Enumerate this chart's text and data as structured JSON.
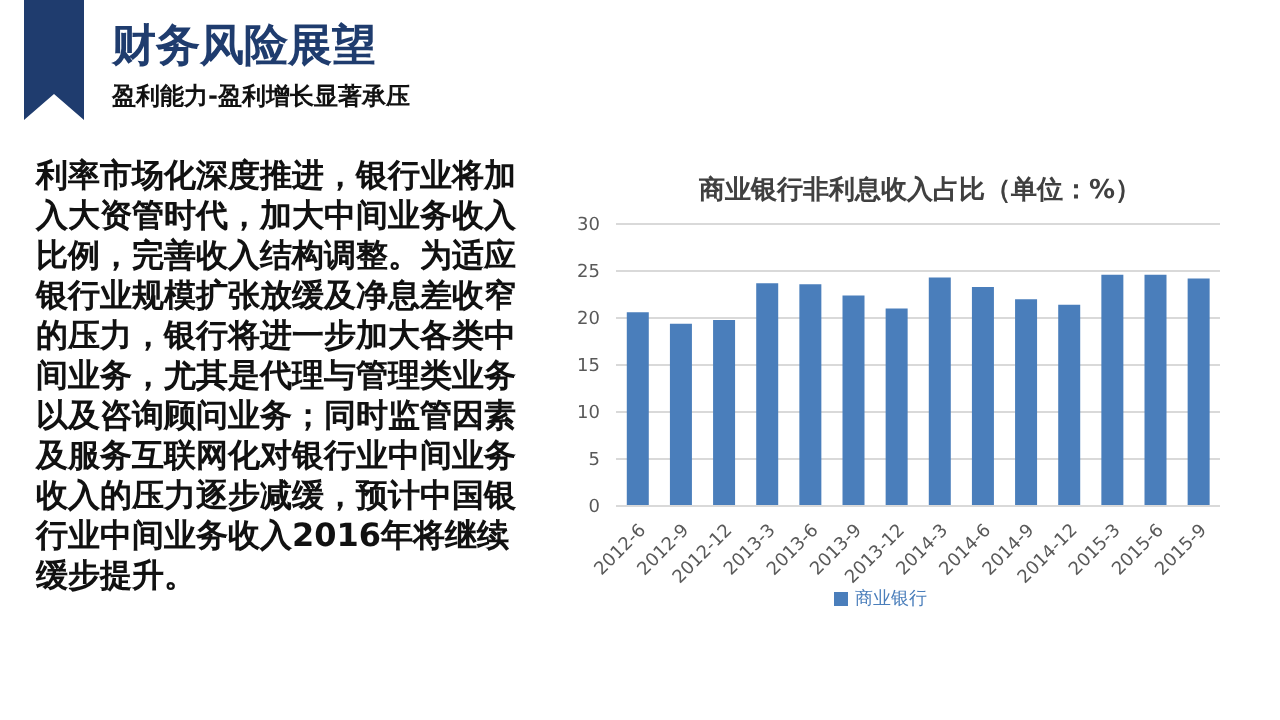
{
  "chart_data": {
    "type": "bar",
    "title": "商业银行非利息收入占比（单位：%）",
    "annotations": [
      "财务风险展望",
      "盈利能力-盈利增长显著承压",
      "利率市场化深度推进，银行业将加入大资管时代，加大中间业务收入比例，完善收入结构调整。为适应银行业规模扩张放缓及净息差收窄的压力，银行将进一步加大各类中间业务，尤其是代理与管理类业务以及咨询顾问业务；同时监管因素及服务互联网化对银行业中间业务收入的压力逐步减缓，预计中国银行业中间业务收入2016年将继续缓步提升。"
    ],
    "categories": [
      "2012-6",
      "2012-9",
      "2012-12",
      "2013-3",
      "2013-6",
      "2013-9",
      "2013-12",
      "2014-3",
      "2014-6",
      "2014-9",
      "2014-12",
      "2015-3",
      "2015-6",
      "2015-9"
    ],
    "series": [
      {
        "name": "商业银行",
        "color": "#4a7ebb",
        "values": [
          20.6,
          19.4,
          19.8,
          23.7,
          23.6,
          22.4,
          21.0,
          24.3,
          23.3,
          22.0,
          21.4,
          24.6,
          24.6,
          24.2
        ]
      }
    ],
    "ylim": [
      0,
      30
    ],
    "yticks": [
      0,
      5,
      10,
      15,
      20,
      25,
      30
    ],
    "grid": "y",
    "legend": "bottom"
  }
}
